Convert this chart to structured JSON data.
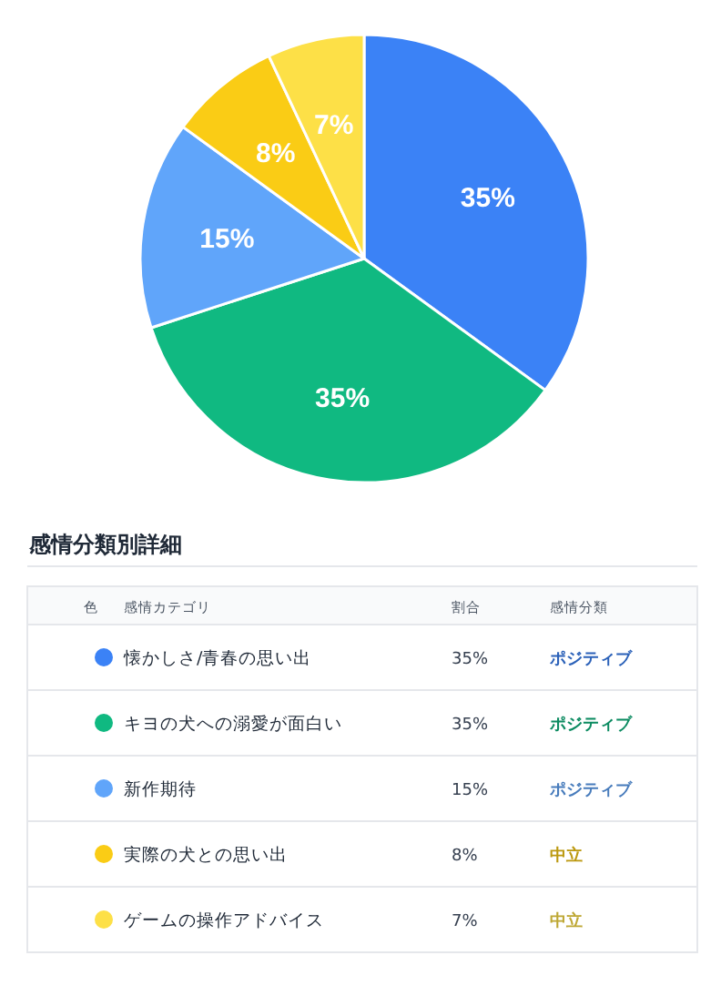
{
  "chart_data": {
    "type": "pie",
    "title": "感情分類別詳細",
    "categories": [
      "懐かしさ/青春の思い出",
      "キヨの犬への溺愛が面白い",
      "新作期待",
      "実際の犬との思い出",
      "ゲームの操作アドバイス"
    ],
    "values": [
      35,
      35,
      15,
      8,
      7
    ],
    "value_labels": [
      "35%",
      "35%",
      "15%",
      "8%",
      "7%"
    ],
    "colors": [
      "#3b82f6",
      "#10b981",
      "#60a5fa",
      "#facc15",
      "#fde047"
    ],
    "legend": "bottom",
    "annotations": [
      "色",
      "感情カテゴリ",
      "割合",
      "感情分類",
      "ポジティブ",
      "ポジティブ",
      "ポジティブ",
      "中立",
      "中立"
    ]
  }
}
